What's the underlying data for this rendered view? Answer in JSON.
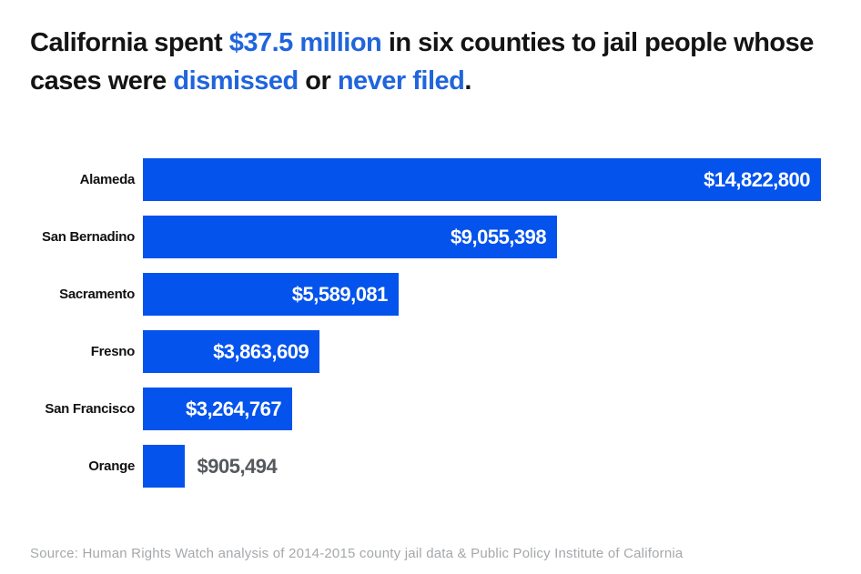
{
  "title": {
    "segments": [
      {
        "text": "California spent ",
        "accent": false
      },
      {
        "text": "$37.5 million",
        "accent": true
      },
      {
        "text": " in six counties to jail people whose cases were ",
        "accent": false
      },
      {
        "text": "dismissed",
        "accent": true
      },
      {
        "text": " or ",
        "accent": false
      },
      {
        "text": "never filed",
        "accent": true
      },
      {
        "text": ".",
        "accent": false
      }
    ]
  },
  "chart_data": {
    "type": "bar",
    "orientation": "horizontal",
    "title": "California spent $37.5 million in six counties to jail people whose cases were dismissed or never filed.",
    "categories": [
      "Alameda",
      "San Bernadino",
      "Sacramento",
      "Fresno",
      "San Francisco",
      "Orange"
    ],
    "values": [
      14822800,
      9055398,
      5589081,
      3863609,
      3264767,
      905494
    ],
    "value_labels": [
      "$14,822,800",
      "$9,055,398",
      "$5,589,081",
      "$3,863,609",
      "$3,264,767",
      "$905,494"
    ],
    "label_inside": [
      true,
      true,
      true,
      true,
      true,
      false
    ],
    "xlim": [
      0,
      14822800
    ],
    "grid": false,
    "legend": "none",
    "axis_ticks": "none"
  },
  "source": "Source: Human Rights Watch analysis of 2014-2015 county jail data & Public Policy Institute of California",
  "colors": {
    "bar": "#0453ec",
    "title_accent": "#2065dc",
    "title_text": "#141414",
    "value_inside": "#ffffff",
    "value_outside": "#55585c",
    "source_text": "#a5a8ab",
    "background": "#ffffff"
  }
}
